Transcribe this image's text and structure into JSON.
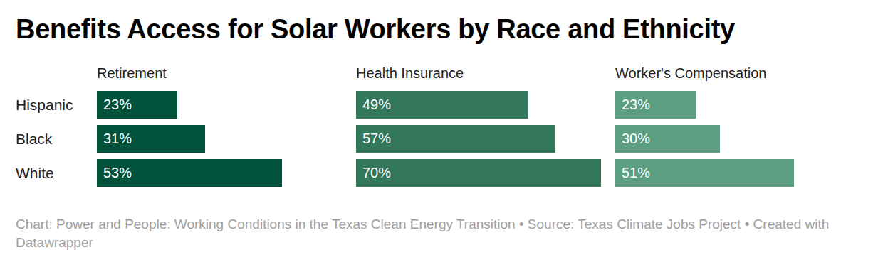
{
  "chart_data": {
    "type": "bar",
    "orientation": "horizontal",
    "data_labels": true,
    "tick_labels": false,
    "title": "Benefits Access for Solar Workers by Race and Ethnicity",
    "note": "Chart: Power and People: Working Conditions in the Texas Clean Energy Transition • Source: Texas Climate Jobs Project • Created with Datawrapper",
    "categories": [
      "Hispanic",
      "Black",
      "White"
    ],
    "xlim": [
      0,
      70
    ],
    "series": [
      {
        "name": "Retirement",
        "color": "#00533a",
        "values": [
          23,
          31,
          53
        ],
        "value_labels": [
          "23%",
          "31%",
          "53%"
        ]
      },
      {
        "name": "Health Insurance",
        "color": "#34785b",
        "values": [
          49,
          57,
          70
        ],
        "value_labels": [
          "49%",
          "57%",
          "70%"
        ]
      },
      {
        "name": "Worker's Compensation",
        "color": "#5c9e82",
        "values": [
          23,
          30,
          51
        ],
        "value_labels": [
          "23%",
          "30%",
          "51%"
        ]
      }
    ]
  }
}
